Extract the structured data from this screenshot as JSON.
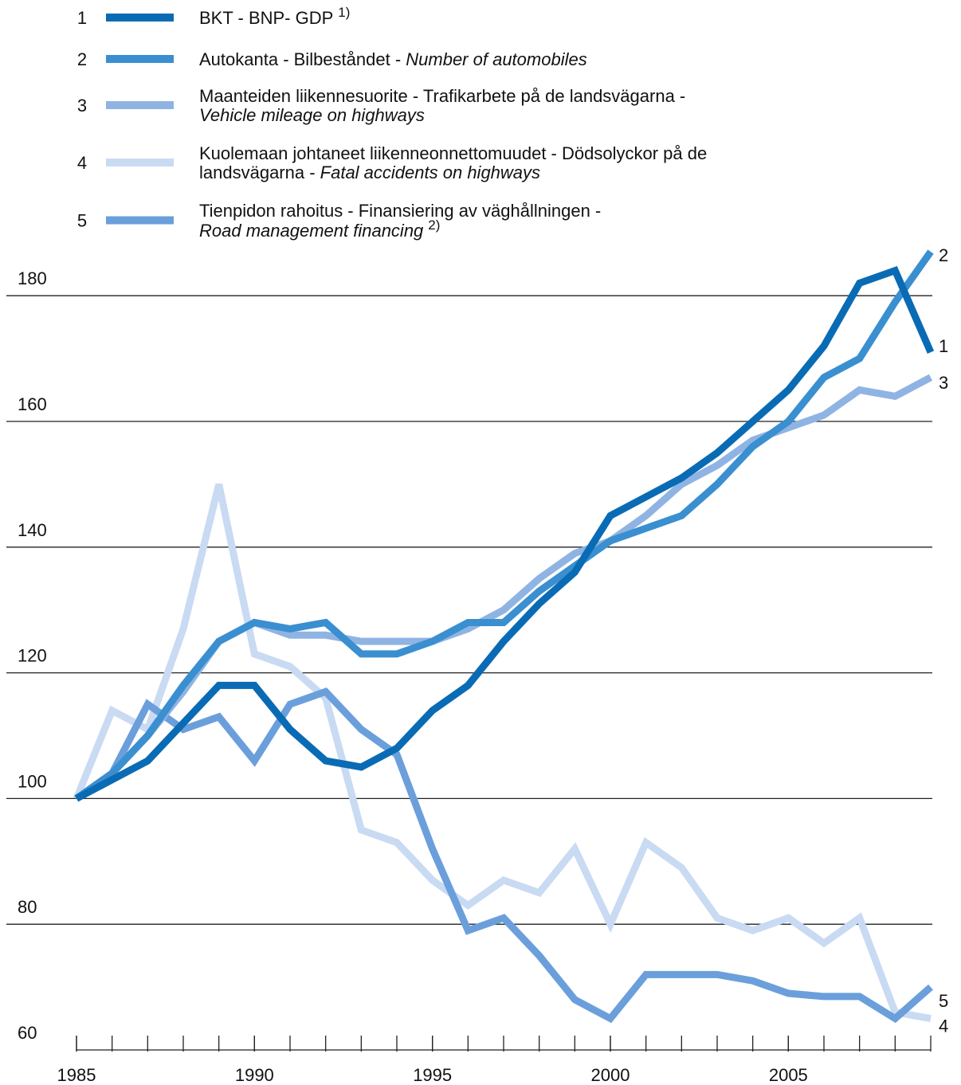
{
  "chart_data": {
    "type": "line",
    "xlim": [
      1985,
      2009
    ],
    "xticks": [
      1985,
      1990,
      1995,
      2000,
      2005
    ],
    "ylim": [
      60,
      190
    ],
    "yticks": [
      60,
      80,
      100,
      120,
      140,
      160,
      180
    ],
    "grid": true,
    "x": [
      1985,
      1986,
      1987,
      1988,
      1989,
      1990,
      1991,
      1992,
      1993,
      1994,
      1995,
      1996,
      1997,
      1998,
      1999,
      2000,
      2001,
      2002,
      2003,
      2004,
      2005,
      2006,
      2007,
      2008,
      2009
    ],
    "series": [
      {
        "name": "1",
        "color": "#0a6bb5",
        "label": [
          [
            {
              "text": "BKT - BNP- GDP"
            },
            {
              "text": "1)",
              "sup": true
            }
          ]
        ],
        "values": [
          100,
          103,
          106,
          112,
          118,
          118,
          111,
          106,
          105,
          108,
          114,
          118,
          125,
          131,
          136,
          145,
          148,
          151,
          155,
          160,
          165,
          172,
          182,
          184,
          171
        ]
      },
      {
        "name": "2",
        "color": "#3a8fd0",
        "label": [
          [
            {
              "text": "Autokanta - Bilbeståndet - "
            },
            {
              "text": "Number of automobiles",
              "italic": true
            }
          ]
        ],
        "values": [
          100,
          104,
          110,
          118,
          125,
          128,
          127,
          128,
          123,
          123,
          125,
          128,
          128,
          133,
          137,
          141,
          143,
          145,
          150,
          156,
          160,
          167,
          170,
          179,
          187
        ]
      },
      {
        "name": "3",
        "color": "#8fb4e3",
        "label": [
          [
            {
              "text": "Maanteiden liikennesuorite - Trafikarbete på de landsvägarna -"
            }
          ],
          [
            {
              "text": "Vehicle mileage on highways",
              "italic": true
            }
          ]
        ],
        "values": [
          100,
          104,
          110,
          117,
          125,
          128,
          126,
          126,
          125,
          125,
          125,
          127,
          130,
          135,
          139,
          141,
          145,
          150,
          153,
          157,
          159,
          161,
          165,
          164,
          167
        ]
      },
      {
        "name": "4",
        "color": "#c9daf3",
        "label": [
          [
            {
              "text": "Kuolemaan johtaneet liikenneonnettomuudet - Dödsolyckor på de"
            }
          ],
          [
            {
              "text": "landsvägarna - "
            },
            {
              "text": "Fatal accidents on highways",
              "italic": true
            }
          ]
        ],
        "values": [
          100,
          114,
          111,
          127,
          150,
          123,
          121,
          116,
          95,
          93,
          87,
          83,
          87,
          85,
          92,
          80,
          93,
          89,
          81,
          79,
          81,
          77,
          81,
          66,
          65
        ]
      },
      {
        "name": "5",
        "color": "#6b9fdb",
        "label": [
          [
            {
              "text": "Tienpidon rahoitus  - Finansiering av väghållningen -"
            }
          ],
          [
            {
              "text": "Road management financing",
              "italic": true
            },
            {
              "text": "2)",
              "sup": true
            }
          ]
        ],
        "values": [
          100,
          104,
          115,
          111,
          113,
          106,
          115,
          117,
          111,
          107,
          92,
          79,
          81,
          75,
          68,
          65,
          72,
          72,
          72,
          71,
          69,
          68.5,
          68.5,
          65,
          70
        ]
      }
    ]
  }
}
